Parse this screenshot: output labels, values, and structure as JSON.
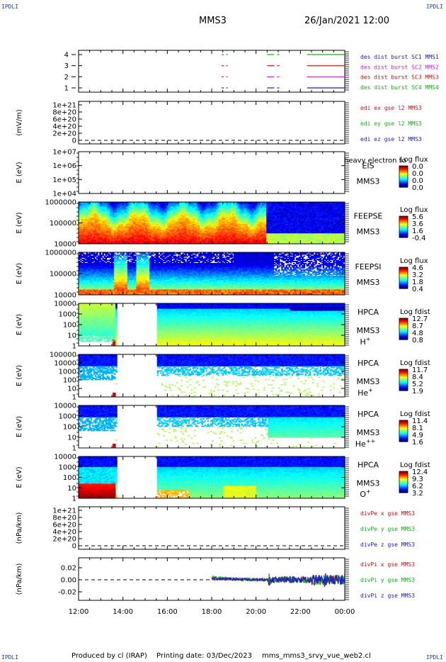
{
  "corners": {
    "tl": "IPDLI",
    "tr": "IPDLI",
    "bl": "IPDLI",
    "br": "IPDLI"
  },
  "header": {
    "title": "MMS3",
    "datetime": "26/Jan/2021 12:00"
  },
  "footer": {
    "producer": "Produced by cl (IRAP)",
    "printing": "Printing date: 03/Dec/2023",
    "script": "mms_mms3_srvy_vue_web2.cl"
  },
  "chart_data": {
    "type": "multi-panel time series",
    "x_ticks": [
      "12:00",
      "14:00",
      "16:00",
      "18:00",
      "20:00",
      "22:00",
      "00:00"
    ],
    "x_range_hours": [
      12,
      24
    ],
    "panels": [
      {
        "id": "burst",
        "type": "availability",
        "yticks": [
          "4",
          "3",
          "2",
          "1"
        ],
        "legend": [
          {
            "text": "des dist burst SC1 MMS1",
            "color": "#1a1ad0"
          },
          {
            "text": "des dist burst SC2 MMS2",
            "color": "#d020d0"
          },
          {
            "text": "des dist burst SC3 MMS3",
            "color": "#d01010"
          },
          {
            "text": "des dist burst SC4 MMS4",
            "color": "#10b010"
          }
        ],
        "segments_hours": [
          [
            18.45,
            18.55
          ],
          [
            18.65,
            18.72
          ],
          [
            20.5,
            20.82
          ],
          [
            20.95,
            21.05
          ],
          [
            22.3,
            24.0
          ]
        ]
      },
      {
        "id": "edi",
        "type": "line",
        "ylabel": "(mV/m)",
        "yticks": [
          "1e+21",
          "8e+20",
          "6e+20",
          "4e+20",
          "2e+20",
          "0"
        ],
        "legend": [
          {
            "text": "edi ex gse l2 MMS3",
            "color": "#d01010"
          },
          {
            "text": "edi ey gse l2 MMS3",
            "color": "#10b010"
          },
          {
            "text": "edi ez gse l2 MMS3",
            "color": "#1a1ad0"
          }
        ]
      },
      {
        "id": "eis",
        "type": "spectrogram",
        "ylabel": "E (eV)",
        "yticks": [
          "1e+07",
          "1e+06",
          "1e+05",
          "1e+04"
        ],
        "labels": [
          "EIS",
          "MMS3"
        ],
        "overlay": "heavy electron to",
        "cbar_title": "Log flux",
        "cbar_ticks": [
          "0.0",
          "0.0",
          "0.0",
          "0.0"
        ],
        "empty": true
      },
      {
        "id": "feepse",
        "type": "spectrogram",
        "ylabel": "E (eV)",
        "yticks": [
          "1000000",
          "100000",
          "10000"
        ],
        "labels": [
          "FEEPSE",
          "MMS3"
        ],
        "cbar_title": "Log flux",
        "cbar_ticks": [
          "5.6",
          "3.6",
          "1.6",
          "-0.4"
        ],
        "cbar_range": [
          -0.4,
          5.6
        ]
      },
      {
        "id": "feepsi",
        "type": "spectrogram",
        "ylabel": "E (eV)",
        "yticks": [
          "1000000",
          "100000",
          "10000"
        ],
        "labels": [
          "FEEPSI",
          "MMS3"
        ],
        "cbar_title": "Log flux",
        "cbar_ticks": [
          "4.6",
          "3.2",
          "1.8",
          "0.4"
        ],
        "cbar_range": [
          0.4,
          4.6
        ]
      },
      {
        "id": "hpca_h",
        "type": "spectrogram",
        "ylabel": "E (eV)",
        "yticks": [
          "10000",
          "1000",
          "100",
          "10",
          "1"
        ],
        "labels": [
          "HPCA",
          "MMS3"
        ],
        "species": "H",
        "species_sup": "+",
        "cbar_title": "Log fdist",
        "cbar_ticks": [
          "12.7",
          "8.7",
          "4.8",
          "0.8"
        ],
        "cbar_range": [
          0.8,
          12.7
        ],
        "gap_hours": [
          13.7,
          15.55
        ]
      },
      {
        "id": "hpca_he",
        "type": "spectrogram",
        "ylabel": "E (eV)",
        "yticks": [
          "100000",
          "10000",
          "1000",
          "100",
          "10",
          "1"
        ],
        "labels": [
          "HPCA",
          "MMS3"
        ],
        "species": "He",
        "species_sup": "+",
        "cbar_title": "Log fdist",
        "cbar_ticks": [
          "11.7",
          "8.4",
          "5.2",
          "1.9"
        ],
        "cbar_range": [
          1.9,
          11.7
        ],
        "gap_hours": [
          13.7,
          15.55
        ]
      },
      {
        "id": "hpca_hepp",
        "type": "spectrogram",
        "ylabel": "E (eV)",
        "yticks": [
          "10000",
          "1000",
          "100",
          "10",
          "1"
        ],
        "labels": [
          "HPCA",
          "MMS3"
        ],
        "species": "He",
        "species_sup": "++",
        "cbar_title": "Log fdist",
        "cbar_ticks": [
          "11.4",
          "8.1",
          "4.9",
          "1.6"
        ],
        "cbar_range": [
          1.6,
          11.4
        ],
        "gap_hours": [
          13.7,
          15.55
        ]
      },
      {
        "id": "hpca_o",
        "type": "spectrogram",
        "ylabel": "E (eV)",
        "yticks": [
          "10000",
          "1000",
          "100",
          "10",
          "1"
        ],
        "labels": [
          "HPCA",
          "MMS3"
        ],
        "species": "O",
        "species_sup": "+",
        "cbar_title": "Log fdist",
        "cbar_ticks": [
          "12.4",
          "9.3",
          "6.2",
          "3.2"
        ],
        "cbar_range": [
          3.2,
          12.4
        ],
        "gap_hours": [
          13.7,
          15.55
        ]
      },
      {
        "id": "divpe",
        "type": "line",
        "ylabel": "(nPa/km)",
        "yticks": [
          "1e+21",
          "8e+20",
          "6e+20",
          "4e+20",
          "2e+20",
          "0"
        ],
        "legend": [
          {
            "text": "divPe x gse MMS3",
            "color": "#d01010"
          },
          {
            "text": "divPe y gse MMS3",
            "color": "#10b010"
          },
          {
            "text": "divPe z gse MMS3",
            "color": "#1a1ad0"
          }
        ]
      },
      {
        "id": "divpi",
        "type": "line",
        "ylabel": "(nPa/km)",
        "yticks": [
          "0.02",
          "0.00",
          "-0.02"
        ],
        "ylim": [
          -0.03,
          0.03
        ],
        "legend": [
          {
            "text": "divPi x gse MMS3",
            "color": "#d01010"
          },
          {
            "text": "divPi y gse MMS3",
            "color": "#10b010"
          },
          {
            "text": "divPi z gse MMS3",
            "color": "#1a1ad0"
          }
        ],
        "data_start_hours": 18.0
      }
    ]
  }
}
